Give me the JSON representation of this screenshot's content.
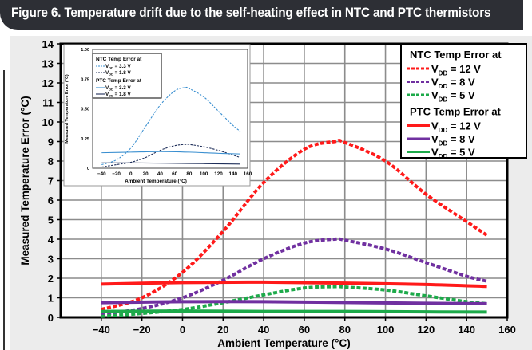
{
  "header": {
    "title": "Figure 6. Temperature drift due to the self-heating effect in NTC and PTC thermistors"
  },
  "colors": {
    "red": "#ff1a1a",
    "purple": "#7030a0",
    "green": "#1daa4a",
    "light_blue": "#3a8fd0",
    "dark_blue": "#1f2f5a",
    "header_bg": "#2d2f35",
    "panel_bg": "#ececec",
    "grid": "#8c8c8c"
  },
  "chart_data": [
    {
      "type": "line",
      "title": "",
      "xlabel": "Ambient Temperature (°C)",
      "ylabel": "Measured Temperature Error (°C)",
      "xlim": [
        -60,
        160
      ],
      "ylim": [
        0,
        14
      ],
      "xticks": [
        -40,
        -20,
        0,
        20,
        40,
        60,
        80,
        100,
        120,
        140,
        160
      ],
      "xtick_labels": [
        "−40",
        "−20",
        "0",
        "20",
        "40",
        "60",
        "80",
        "100",
        "120",
        "140",
        "160"
      ],
      "yticks": [
        0,
        1,
        2,
        3,
        4,
        5,
        6,
        7,
        8,
        9,
        10,
        11,
        12,
        13,
        14
      ],
      "grid": true,
      "legend_placement": "top-right",
      "legend_groups": [
        "NTC Temp Error at",
        "PTC Temp Error at"
      ],
      "series": [
        {
          "name": "NTC VDD = 12 V",
          "group": 0,
          "label": "= 12 V",
          "color": "#ff1a1a",
          "style": "dashed",
          "x": [
            -40,
            -20,
            0,
            20,
            40,
            60,
            75,
            80,
            100,
            120,
            140,
            150
          ],
          "y": [
            0.4,
            1.0,
            2.3,
            4.4,
            6.9,
            8.6,
            9.0,
            8.95,
            8.0,
            6.3,
            4.9,
            4.2
          ]
        },
        {
          "name": "NTC VDD = 8 V",
          "group": 0,
          "label": "= 8 V",
          "color": "#7030a0",
          "style": "dashed",
          "x": [
            -40,
            -20,
            0,
            20,
            40,
            60,
            75,
            80,
            100,
            120,
            140,
            150
          ],
          "y": [
            0.15,
            0.45,
            1.0,
            1.9,
            3.0,
            3.8,
            4.0,
            3.95,
            3.5,
            2.8,
            2.1,
            1.85
          ]
        },
        {
          "name": "NTC VDD = 5 V",
          "group": 0,
          "label": "= 5 V",
          "color": "#1daa4a",
          "style": "dashed",
          "x": [
            -40,
            -20,
            0,
            20,
            40,
            60,
            75,
            80,
            100,
            120,
            140,
            150
          ],
          "y": [
            0.05,
            0.2,
            0.4,
            0.75,
            1.15,
            1.5,
            1.57,
            1.55,
            1.4,
            1.1,
            0.8,
            0.7
          ]
        },
        {
          "name": "PTC VDD = 12 V",
          "group": 1,
          "label": "= 12 V",
          "color": "#ff1a1a",
          "style": "solid",
          "x": [
            -40,
            0,
            40,
            80,
            120,
            150
          ],
          "y": [
            1.7,
            1.78,
            1.8,
            1.75,
            1.68,
            1.58
          ]
        },
        {
          "name": "PTC VDD = 8 V",
          "group": 1,
          "label": "= 8 V",
          "color": "#7030a0",
          "style": "solid",
          "x": [
            -40,
            0,
            40,
            80,
            120,
            150
          ],
          "y": [
            0.75,
            0.8,
            0.8,
            0.76,
            0.72,
            0.7
          ]
        },
        {
          "name": "PTC VDD = 5 V",
          "group": 1,
          "label": "= 5 V",
          "color": "#1daa4a",
          "style": "solid",
          "x": [
            -40,
            0,
            40,
            80,
            120,
            150
          ],
          "y": [
            0.3,
            0.32,
            0.3,
            0.3,
            0.28,
            0.27
          ]
        }
      ]
    },
    {
      "type": "line",
      "title": "",
      "xlabel": "Ambient Temperature (°C)",
      "ylabel": "Measured Temperature Error (°C)",
      "xlim": [
        -60,
        160
      ],
      "ylim": [
        0,
        1
      ],
      "xticks": [
        -40,
        -20,
        0,
        20,
        40,
        60,
        80,
        100,
        120,
        140,
        160
      ],
      "xtick_labels": [
        "−40",
        "−20",
        "0",
        "20",
        "40",
        "60",
        "80",
        "100",
        "120",
        "140",
        "160"
      ],
      "yticks": [
        0,
        0.25,
        0.5,
        0.75,
        1.0
      ],
      "ytick_labels": [
        "0",
        "0.25",
        "0.50",
        "0.75",
        "1.00"
      ],
      "grid": false,
      "legend_placement": "top-left",
      "legend_groups": [
        "NTC Temp Error at",
        "PTC Temp Error at"
      ],
      "series": [
        {
          "name": "NTC VDD = 3.3 V",
          "group": 0,
          "label": "= 3.3 V",
          "color": "#3a8fd0",
          "style": "dashed",
          "x": [
            -40,
            -20,
            0,
            20,
            40,
            60,
            75,
            80,
            100,
            120,
            140,
            150
          ],
          "y": [
            0.03,
            0.07,
            0.17,
            0.35,
            0.53,
            0.65,
            0.68,
            0.67,
            0.6,
            0.48,
            0.36,
            0.31
          ]
        },
        {
          "name": "NTC VDD = 1.8 V",
          "group": 0,
          "label": "= 1.8 V",
          "color": "#1f2f5a",
          "style": "dashed",
          "x": [
            -40,
            -20,
            0,
            20,
            40,
            60,
            75,
            80,
            100,
            120,
            140,
            150
          ],
          "y": [
            0.01,
            0.03,
            0.05,
            0.09,
            0.15,
            0.19,
            0.2,
            0.2,
            0.18,
            0.15,
            0.11,
            0.09
          ]
        },
        {
          "name": "PTC VDD = 3.3 V",
          "group": 1,
          "label": "= 3.3 V",
          "color": "#3a8fd0",
          "style": "solid",
          "x": [
            -40,
            0,
            40,
            80,
            120,
            150
          ],
          "y": [
            0.13,
            0.135,
            0.14,
            0.135,
            0.125,
            0.12
          ]
        },
        {
          "name": "PTC VDD = 1.8 V",
          "group": 1,
          "label": "= 1.8 V",
          "color": "#1f2f5a",
          "style": "solid",
          "x": [
            -40,
            0,
            80,
            150
          ],
          "y": [
            0.045,
            0.045,
            0.04,
            0.035
          ]
        }
      ]
    }
  ]
}
